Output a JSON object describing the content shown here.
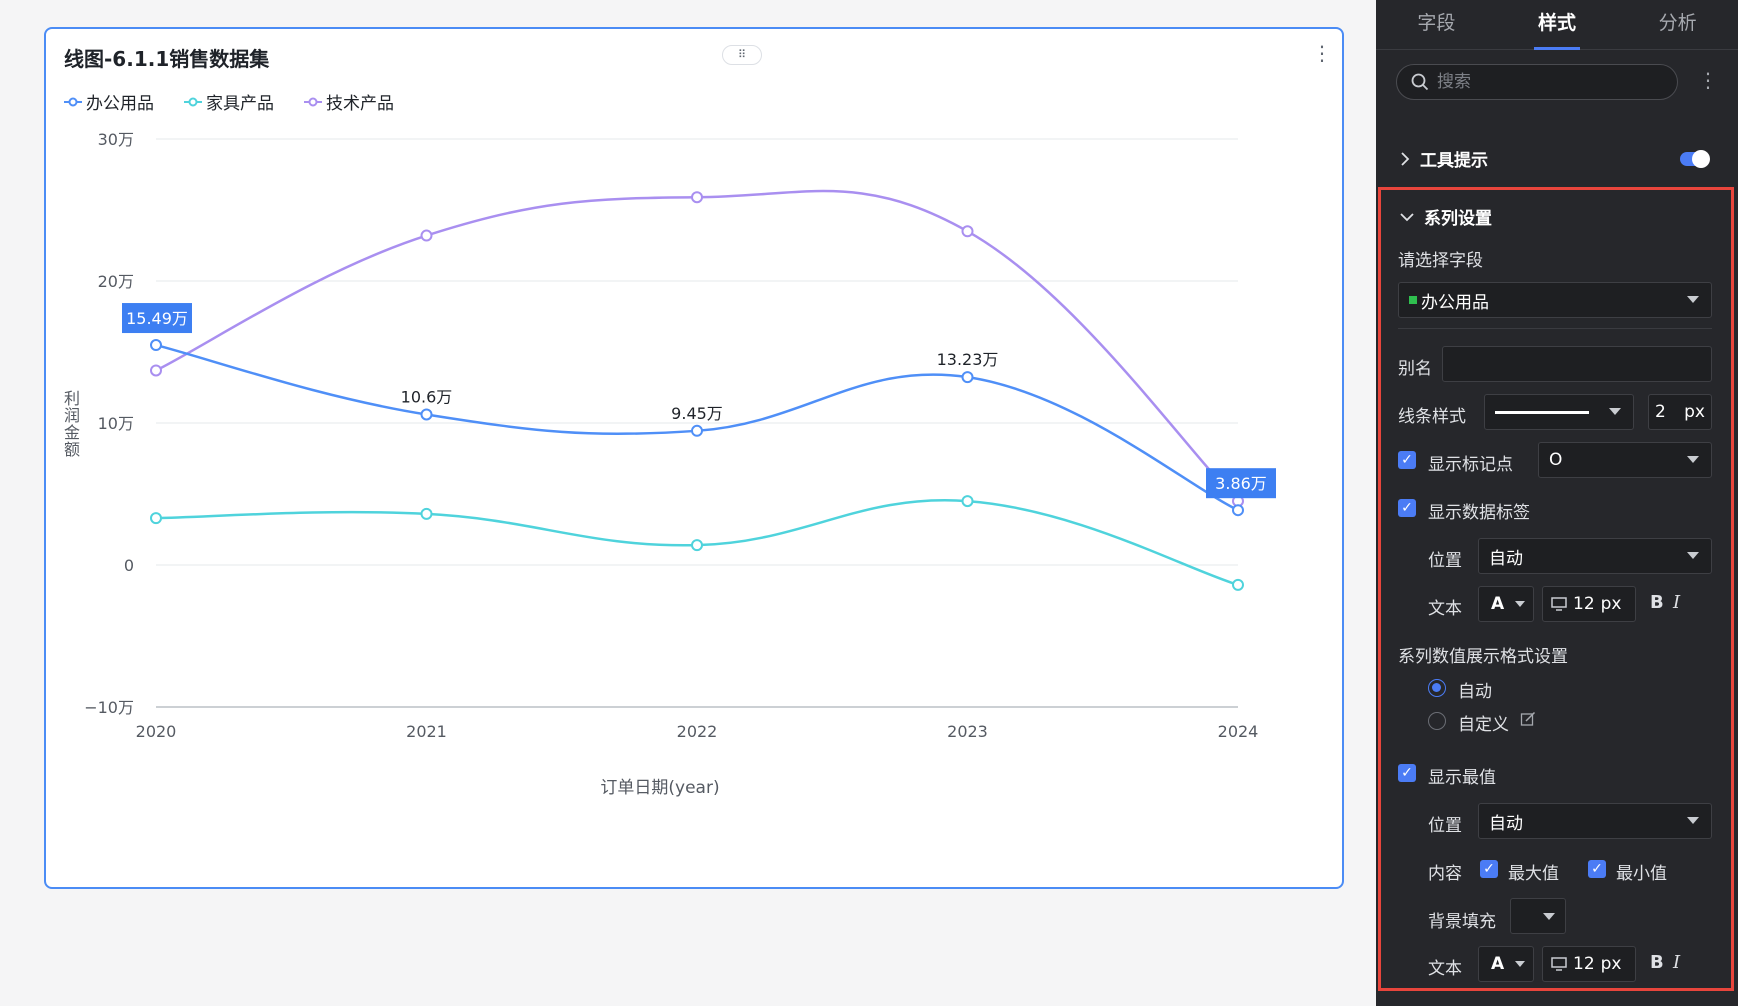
{
  "card": {
    "title": "线图-6.1.1销售数据集",
    "drag_glyph": "⠿",
    "more_glyph": "⋮"
  },
  "colors": {
    "office": "#4f8ff7",
    "furniture": "#4fd3dc",
    "tech": "#a98ff0",
    "accent": "#4b7cf5",
    "red_highlight": "#e8453c",
    "extreme_bg": "#3d7ff2"
  },
  "chart_data": {
    "type": "line",
    "x": [
      "2020",
      "2021",
      "2022",
      "2023",
      "2024"
    ],
    "xlabel": "订单日期(year)",
    "ylabel": "利润金额",
    "ylim": [
      -100000,
      300000
    ],
    "yticks": [
      {
        "value": 300000,
        "label": "30万"
      },
      {
        "value": 200000,
        "label": "20万"
      },
      {
        "value": 100000,
        "label": "10万"
      },
      {
        "value": 0,
        "label": "0"
      },
      {
        "value": -100000,
        "label": "−10万"
      }
    ],
    "series": [
      {
        "name": "办公用品",
        "key": "office",
        "values": [
          154900,
          106000,
          94500,
          132300,
          38600
        ],
        "labels": [
          "15.49万",
          "10.6万",
          "9.45万",
          "13.23万",
          "3.86万"
        ],
        "max_index": 0,
        "min_index": 4
      },
      {
        "name": "家具产品",
        "key": "furniture",
        "values": [
          33000,
          36000,
          14000,
          45000,
          -14000
        ]
      },
      {
        "name": "技术产品",
        "key": "tech",
        "values": [
          137000,
          232000,
          259000,
          235000,
          45000
        ]
      }
    ],
    "legend_position": "top-left",
    "grid": true
  },
  "panel": {
    "tabs": [
      "字段",
      "样式",
      "分析"
    ],
    "active_tab": "样式",
    "search_placeholder": "搜索",
    "tooltip_section": "工具提示",
    "series_section": "系列设置",
    "select_field_label": "请选择字段",
    "selected_field": "办公用品",
    "alias_label": "别名",
    "alias_value": "",
    "line_style_label": "线条样式",
    "line_width": "2",
    "px": "px",
    "show_marker_label": "显示标记点",
    "marker_shape": "O",
    "show_data_label": "显示数据标签",
    "position_label": "位置",
    "position_value": "自动",
    "text_label": "文本",
    "font_color_glyph": "A",
    "font_size": "12",
    "bold_glyph": "B",
    "italic_glyph": "I",
    "number_format_label": "系列数值展示格式设置",
    "format_auto": "自动",
    "format_custom": "自定义",
    "show_extreme_label": "显示最值",
    "extreme_position_label": "位置",
    "extreme_position_value": "自动",
    "content_label": "内容",
    "max_label": "最大值",
    "min_label": "最小值",
    "bg_fill_label": "背景填充",
    "text_label_2": "文本",
    "font_size_2": "12"
  }
}
